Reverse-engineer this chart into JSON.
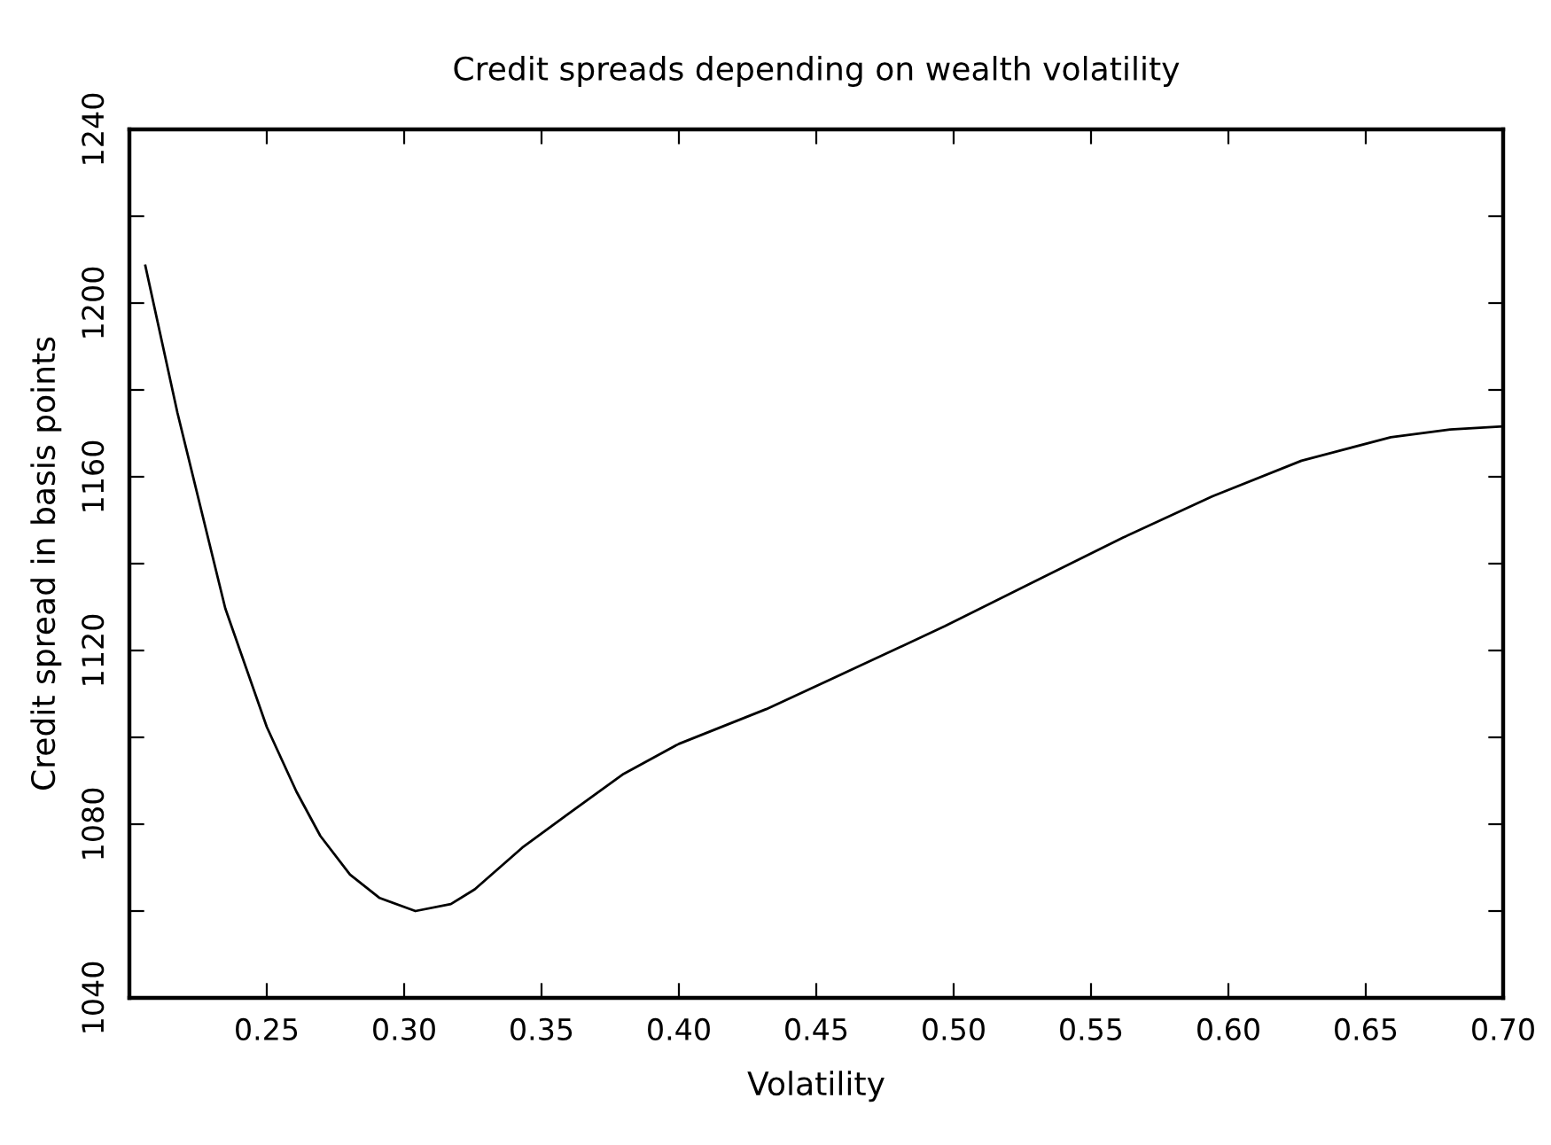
{
  "chart_data": {
    "type": "line",
    "title": "Credit spreads depending on wealth volatility",
    "xlabel": "Volatility",
    "ylabel": "Credit spread in basis points",
    "series": [
      {
        "color": "#000000",
        "x": [
          0.2058,
          0.2175,
          0.2349,
          0.25,
          0.2608,
          0.2695,
          0.2803,
          0.2911,
          0.3041,
          0.317,
          0.3257,
          0.343,
          0.3604,
          0.3799,
          0.4,
          0.4318,
          0.4643,
          0.4968,
          0.5292,
          0.5617,
          0.5942,
          0.6266,
          0.6591,
          0.6807,
          0.7
        ],
        "values": [
          1208.6,
          1174.7,
          1129.7,
          1102.4,
          1087.5,
          1077.3,
          1068.4,
          1063,
          1060,
          1061.6,
          1065,
          1074.6,
          1082.7,
          1091.6,
          1098.5,
          1106.5,
          1116,
          1125.6,
          1135.8,
          1146,
          1155.5,
          1163.7,
          1169.1,
          1170.9,
          1171.6
        ]
      }
    ],
    "xlim": [
      0.2,
      0.7
    ],
    "ylim": [
      1040,
      1240
    ],
    "xticks": [
      {
        "value": 0.25,
        "label": "0.25"
      },
      {
        "value": 0.3,
        "label": "0.30"
      },
      {
        "value": 0.35,
        "label": "0.35"
      },
      {
        "value": 0.4,
        "label": "0.40"
      },
      {
        "value": 0.45,
        "label": "0.45"
      },
      {
        "value": 0.5,
        "label": "0.50"
      },
      {
        "value": 0.55,
        "label": "0.55"
      },
      {
        "value": 0.6,
        "label": "0.60"
      },
      {
        "value": 0.65,
        "label": "0.65"
      },
      {
        "value": 0.7,
        "label": "0.70"
      }
    ],
    "yticks": [
      1040,
      {
        "value": 1060,
        "label": null
      },
      1080,
      {
        "value": 1100,
        "label": null
      },
      1120,
      {
        "value": 1140,
        "label": null
      },
      1160,
      {
        "value": 1180,
        "label": null
      },
      1200,
      {
        "value": 1220,
        "label": null
      },
      1240
    ],
    "grid": false,
    "marker": "none",
    "line_style": "solid"
  }
}
